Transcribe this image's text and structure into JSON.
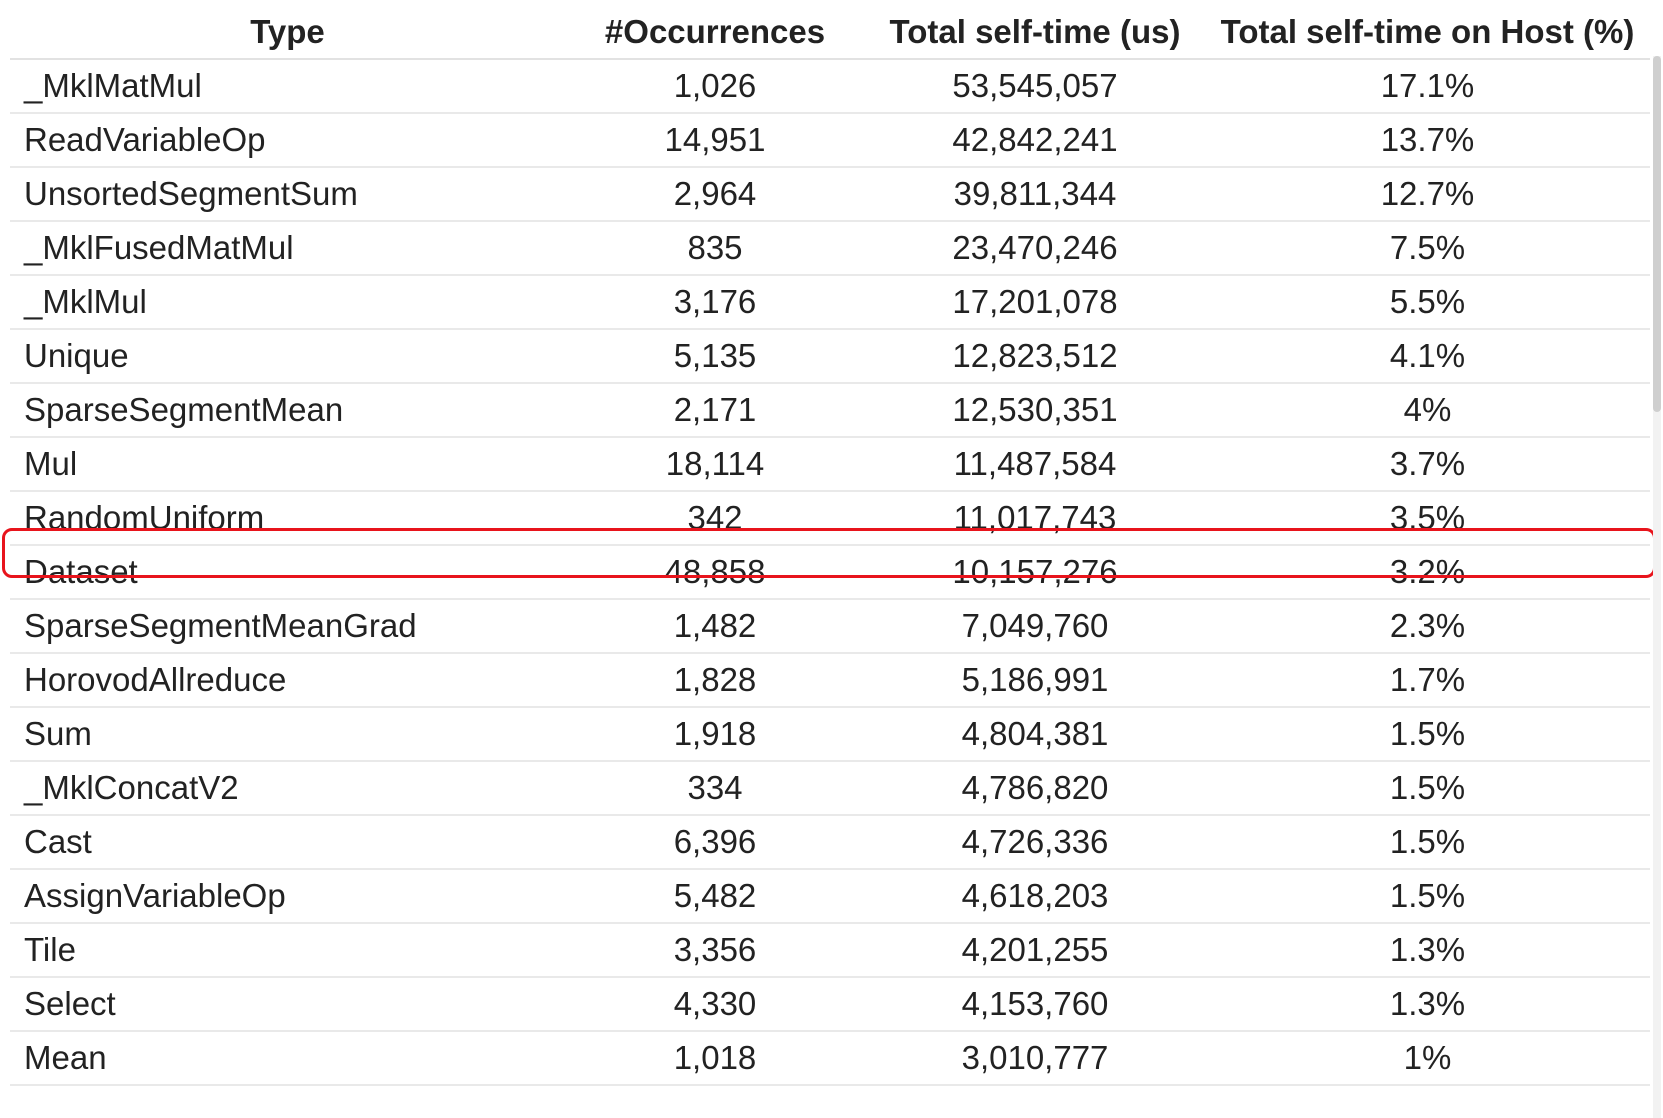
{
  "table": {
    "columns": [
      "Type",
      "#Occurrences",
      "Total self-time (us)",
      "Total self-time on Host (%)"
    ],
    "rows": [
      {
        "type": "_MklMatMul",
        "occurrences": "1,026",
        "self_time": "53,545,057",
        "host_pct": "17.1%"
      },
      {
        "type": "ReadVariableOp",
        "occurrences": "14,951",
        "self_time": "42,842,241",
        "host_pct": "13.7%"
      },
      {
        "type": "UnsortedSegmentSum",
        "occurrences": "2,964",
        "self_time": "39,811,344",
        "host_pct": "12.7%"
      },
      {
        "type": "_MklFusedMatMul",
        "occurrences": "835",
        "self_time": "23,470,246",
        "host_pct": "7.5%"
      },
      {
        "type": "_MklMul",
        "occurrences": "3,176",
        "self_time": "17,201,078",
        "host_pct": "5.5%"
      },
      {
        "type": "Unique",
        "occurrences": "5,135",
        "self_time": "12,823,512",
        "host_pct": "4.1%"
      },
      {
        "type": "SparseSegmentMean",
        "occurrences": "2,171",
        "self_time": "12,530,351",
        "host_pct": "4%"
      },
      {
        "type": "Mul",
        "occurrences": "18,114",
        "self_time": "11,487,584",
        "host_pct": "3.7%"
      },
      {
        "type": "RandomUniform",
        "occurrences": "342",
        "self_time": "11,017,743",
        "host_pct": "3.5%"
      },
      {
        "type": "Dataset",
        "occurrences": "48,858",
        "self_time": "10,157,276",
        "host_pct": "3.2%"
      },
      {
        "type": "SparseSegmentMeanGrad",
        "occurrences": "1,482",
        "self_time": "7,049,760",
        "host_pct": "2.3%"
      },
      {
        "type": "HorovodAllreduce",
        "occurrences": "1,828",
        "self_time": "5,186,991",
        "host_pct": "1.7%"
      },
      {
        "type": "Sum",
        "occurrences": "1,918",
        "self_time": "4,804,381",
        "host_pct": "1.5%"
      },
      {
        "type": "_MklConcatV2",
        "occurrences": "334",
        "self_time": "4,786,820",
        "host_pct": "1.5%"
      },
      {
        "type": "Cast",
        "occurrences": "6,396",
        "self_time": "4,726,336",
        "host_pct": "1.5%"
      },
      {
        "type": "AssignVariableOp",
        "occurrences": "5,482",
        "self_time": "4,618,203",
        "host_pct": "1.5%"
      },
      {
        "type": "Tile",
        "occurrences": "3,356",
        "self_time": "4,201,255",
        "host_pct": "1.3%"
      },
      {
        "type": "Select",
        "occurrences": "4,330",
        "self_time": "4,153,760",
        "host_pct": "1.3%"
      },
      {
        "type": "Mean",
        "occurrences": "1,018",
        "self_time": "3,010,777",
        "host_pct": "1%"
      }
    ]
  },
  "highlight": {
    "row_type": "Dataset",
    "color": "#e8141c"
  }
}
